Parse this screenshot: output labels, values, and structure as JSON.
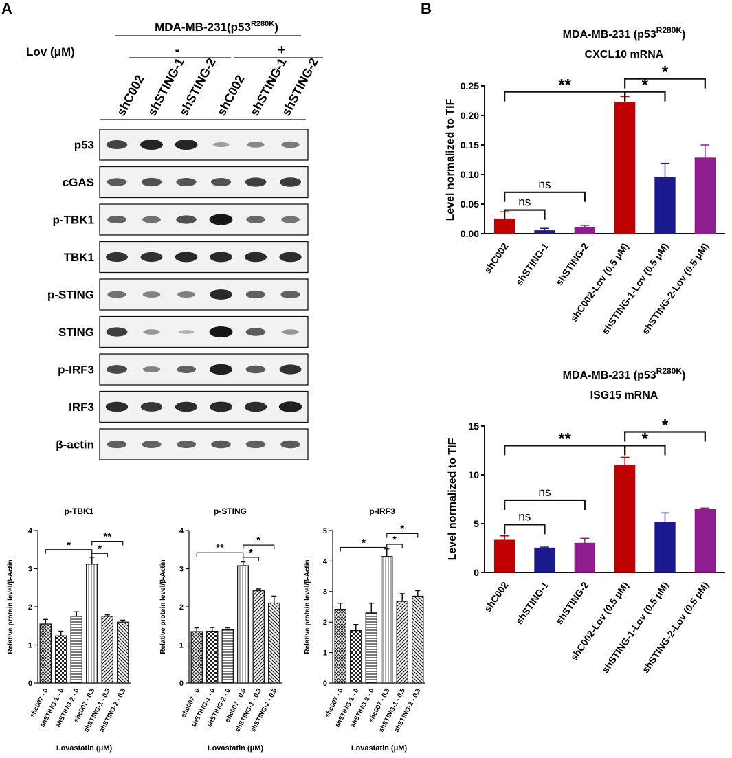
{
  "panel_labels": {
    "a": "A",
    "b": "B"
  },
  "western_blot": {
    "cell_line": "MDA-MB-231(p53",
    "cell_line_sup": "R280K",
    "cell_line_close": ")",
    "treatment_label": "Lov (μM)",
    "group_minus": "-",
    "group_plus": "+",
    "lanes": [
      "shC002",
      "shSTING-1",
      "shSTING-2",
      "shC002",
      "shSTING-1",
      "shSTING-2"
    ],
    "proteins": [
      {
        "name": "p53",
        "intensities": [
          0.75,
          0.92,
          0.92,
          0.25,
          0.38,
          0.45
        ]
      },
      {
        "name": "cGAS",
        "intensities": [
          0.62,
          0.68,
          0.66,
          0.66,
          0.78,
          0.8
        ]
      },
      {
        "name": "p-TBK1",
        "intensities": [
          0.58,
          0.5,
          0.68,
          1.0,
          0.55,
          0.48
        ]
      },
      {
        "name": "TBK1",
        "intensities": [
          0.85,
          0.85,
          0.9,
          0.9,
          0.88,
          0.88
        ]
      },
      {
        "name": "p-STING",
        "intensities": [
          0.5,
          0.4,
          0.42,
          0.9,
          0.6,
          0.58
        ]
      },
      {
        "name": "STING",
        "intensities": [
          0.78,
          0.3,
          0.15,
          1.0,
          0.62,
          0.3
        ]
      },
      {
        "name": "p-IRF3",
        "intensities": [
          0.72,
          0.4,
          0.58,
          0.95,
          0.62,
          0.85
        ]
      },
      {
        "name": "IRF3",
        "intensities": [
          0.88,
          0.82,
          0.88,
          0.9,
          0.88,
          0.95
        ]
      },
      {
        "name": "β-actin",
        "intensities": [
          0.6,
          0.58,
          0.58,
          0.62,
          0.6,
          0.62
        ]
      }
    ]
  },
  "chart_data": [
    {
      "id": "ptbk1",
      "type": "bar",
      "title": "p-TBK1",
      "xlabel": "Lovastatin (μM)",
      "ylabel": "Relative protein level/β-Actin",
      "ylim": [
        0,
        4
      ],
      "yticks": [
        0,
        1,
        2,
        3,
        4
      ],
      "categories": [
        "shc007 - 0",
        "shSTING-1 - 0",
        "shSTING-2 - 0",
        "shc007 - 0.5",
        "shSTING-1 - 0.5",
        "shSTING-2 - 0.5"
      ],
      "values": [
        1.55,
        1.24,
        1.75,
        3.12,
        1.75,
        1.6
      ],
      "errors": [
        0.12,
        0.12,
        0.12,
        0.18,
        0.04,
        0.05
      ],
      "patterns": [
        "crosshatch",
        "check",
        "hstripe",
        "vstripe",
        "diag",
        "diag2"
      ],
      "significance": [
        {
          "from": 0,
          "to": 3,
          "label": "*",
          "level": 3.5
        },
        {
          "from": 3,
          "to": 4,
          "label": "*",
          "level": 3.4
        },
        {
          "from": 3,
          "to": 5,
          "label": "**",
          "level": 3.72
        }
      ]
    },
    {
      "id": "psting",
      "type": "bar",
      "title": "p-STING",
      "xlabel": "Lovastatin (μM)",
      "ylabel": "Relative protein level/β-Actin",
      "ylim": [
        0,
        4
      ],
      "yticks": [
        0,
        1,
        2,
        3,
        4
      ],
      "categories": [
        "shc007 - 0",
        "shSTING-1 - 0",
        "shSTING-2 - 0",
        "shc007 - 0.5",
        "shSTING-1 - 0.5",
        "shSTING-2 - 0.5"
      ],
      "values": [
        1.35,
        1.36,
        1.4,
        3.08,
        2.42,
        2.1
      ],
      "errors": [
        0.1,
        0.1,
        0.05,
        0.1,
        0.05,
        0.18
      ],
      "patterns": [
        "crosshatch",
        "check",
        "hstripe",
        "vstripe",
        "diag",
        "diag2"
      ],
      "significance": [
        {
          "from": 0,
          "to": 3,
          "label": "**",
          "level": 3.42
        },
        {
          "from": 3,
          "to": 4,
          "label": "*",
          "level": 3.3
        },
        {
          "from": 3,
          "to": 5,
          "label": "*",
          "level": 3.62
        }
      ]
    },
    {
      "id": "pirf3",
      "type": "bar",
      "title": "p-IRF3",
      "xlabel": "Lovastatin (μM)",
      "ylabel": "Relative protein level/β-Actin",
      "ylim": [
        0,
        5
      ],
      "yticks": [
        0,
        1,
        2,
        3,
        4,
        5
      ],
      "categories": [
        "shc007 - 0",
        "shSTING-1 - 0",
        "shSTING-2 - 0",
        "shc007 - 0.5",
        "shSTING-1 - 0.5",
        "shSTING-2 - 0.5"
      ],
      "values": [
        2.42,
        1.72,
        2.3,
        4.15,
        2.68,
        2.85
      ],
      "errors": [
        0.2,
        0.2,
        0.32,
        0.25,
        0.25,
        0.18
      ],
      "patterns": [
        "crosshatch",
        "check",
        "hstripe",
        "vstripe",
        "diag",
        "diag2"
      ],
      "significance": [
        {
          "from": 0,
          "to": 3,
          "label": "*",
          "level": 4.45
        },
        {
          "from": 3,
          "to": 4,
          "label": "*",
          "level": 4.55
        },
        {
          "from": 3,
          "to": 5,
          "label": "*",
          "level": 4.9
        }
      ]
    },
    {
      "id": "cxcl10",
      "type": "bar",
      "title": "MDA-MB-231 (p53",
      "title_sup": "R280K",
      "title_close": ")",
      "subtitle": "CXCL10 mRNA",
      "xlabel": "",
      "ylabel": "Level normalized to TIF",
      "ylim": [
        0,
        0.25
      ],
      "yticks": [
        0.0,
        0.05,
        0.1,
        0.15,
        0.2,
        0.25
      ],
      "ytick_labels": [
        "0.00",
        "0.05",
        "0.10",
        "0.15",
        "0.20",
        "0.25"
      ],
      "categories": [
        "shC002",
        "shSTING-1",
        "shSTING-2",
        "shC002-Lov (0.5 μM)",
        "shSTING-1-Lov (0.5 μM)",
        "shSTING-2-Lov (0.5 μM)"
      ],
      "values": [
        0.025,
        0.005,
        0.01,
        0.222,
        0.095,
        0.128
      ],
      "errors": [
        0.012,
        0.004,
        0.004,
        0.01,
        0.024,
        0.022
      ],
      "colors": [
        "#c00000",
        "#1a1a8c",
        "#8e1d8e",
        "#c00000",
        "#1a1a8c",
        "#8e1d8e"
      ],
      "significance": [
        {
          "from": 0,
          "to": 1,
          "label": "ns",
          "level": 0.04
        },
        {
          "from": 0,
          "to": 2,
          "label": "ns",
          "level": 0.07
        },
        {
          "from": 0,
          "to": 3,
          "label": "**",
          "level": 0.24
        },
        {
          "from": 3,
          "to": 4,
          "label": "*",
          "level": 0.24
        },
        {
          "from": 3,
          "to": 5,
          "label": "*",
          "level": 0.262
        }
      ]
    },
    {
      "id": "isg15",
      "type": "bar",
      "title": "MDA-MB-231 (p53",
      "title_sup": "R280K",
      "title_close": ")",
      "subtitle": "ISG15 mRNA",
      "xlabel": "",
      "ylabel": "Level normalized to TIF",
      "ylim": [
        0,
        15
      ],
      "yticks": [
        0,
        5,
        10,
        15
      ],
      "categories": [
        "shC002",
        "shSTING-1",
        "shSTING-2",
        "shC002-Lov (0.5 μM)",
        "shSTING-1-Lov (0.5 μM)",
        "shSTING-2-Lov (0.5 μM)"
      ],
      "values": [
        3.3,
        2.5,
        3.0,
        11.0,
        5.1,
        6.45
      ],
      "errors": [
        0.45,
        0.1,
        0.5,
        0.8,
        1.0,
        0.15
      ],
      "colors": [
        "#c00000",
        "#1a1a8c",
        "#8e1d8e",
        "#c00000",
        "#1a1a8c",
        "#8e1d8e"
      ],
      "significance": [
        {
          "from": 0,
          "to": 1,
          "label": "ns",
          "level": 4.9
        },
        {
          "from": 0,
          "to": 2,
          "label": "ns",
          "level": 7.4
        },
        {
          "from": 0,
          "to": 3,
          "label": "**",
          "level": 13.0
        },
        {
          "from": 3,
          "to": 4,
          "label": "*",
          "level": 13.0
        },
        {
          "from": 3,
          "to": 5,
          "label": "*",
          "level": 14.4
        }
      ]
    }
  ]
}
